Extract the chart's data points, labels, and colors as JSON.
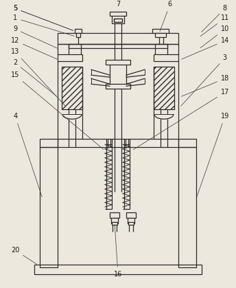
{
  "bg_color": "#ede8de",
  "lc": "#2a2a2a",
  "lw": 0.9,
  "lw2": 0.7
}
